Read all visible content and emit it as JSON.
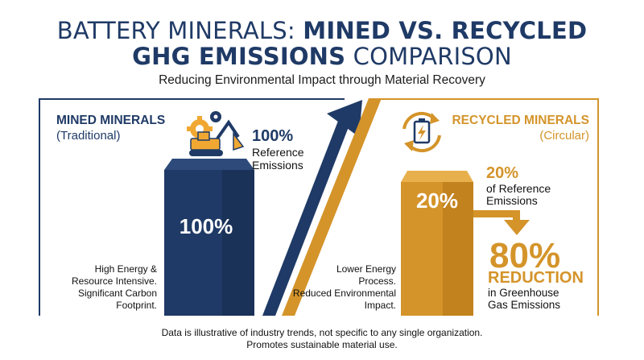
{
  "title": {
    "line1_light": "BATTERY MINERALS: ",
    "line1_bold": "MINED VS. RECYCLED",
    "line2_bold": "GHG EMISSIONS",
    "line2_light": " COMPARISON"
  },
  "subtitle": "Reducing Environmental Impact through Material Recovery",
  "colors": {
    "navy": "#1f3a66",
    "gold": "#d4942a"
  },
  "mined": {
    "heading": "MINED MINERALS",
    "subheading": "(Traditional)",
    "icon": "gear-excavator-icon",
    "bar_label": "100%",
    "ref_value": "100%",
    "ref_label_1": "Reference",
    "ref_label_2": "Emissions",
    "desc_1": "High Energy &",
    "desc_2": "Resource Intensive.",
    "desc_3": "Significant Carbon",
    "desc_4": "Footprint."
  },
  "recycled": {
    "heading": "RECYCLED MINERALS",
    "subheading": "(Circular)",
    "icon": "recycle-battery-icon",
    "bar_label": "20%",
    "ref_value": "20%",
    "ref_label_1": "of Reference",
    "ref_label_2": "Emissions",
    "desc_1": "Lower Energy",
    "desc_2": "Process.",
    "desc_3": "Reduced Environmental",
    "desc_4": "Impact.",
    "reduction_value": "80%",
    "reduction_word": "REDUCTION",
    "reduction_label_1": "in Greenhouse",
    "reduction_label_2": "Gas Emissions"
  },
  "footer": {
    "line1": "Data is illustrative of industry trends, not specific to any single organization.",
    "line2": "Promotes sustainable material use."
  },
  "chart_data": {
    "type": "bar",
    "categories": [
      "Mined Minerals",
      "Recycled Minerals"
    ],
    "values": [
      100,
      20
    ],
    "unit": "% of reference emissions",
    "ylim": [
      0,
      100
    ],
    "grid": false,
    "annotations": [
      "80% REDUCTION in Greenhouse Gas Emissions"
    ]
  }
}
